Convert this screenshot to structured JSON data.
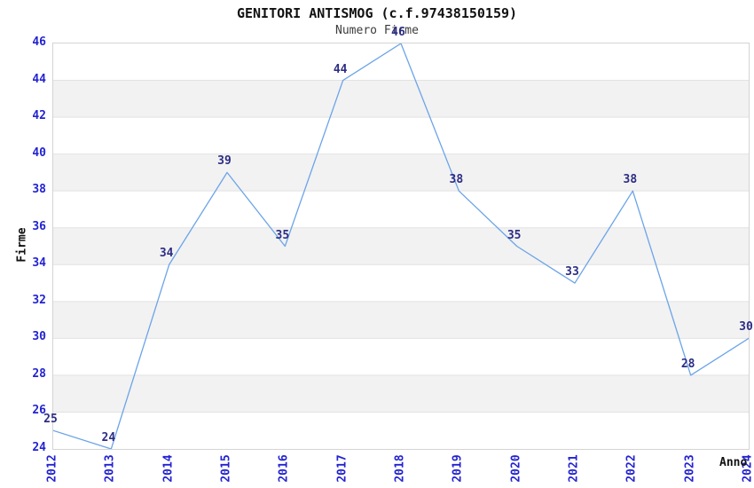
{
  "chart_data": {
    "type": "line",
    "title": "GENITORI ANTISMOG (c.f.97438150159)",
    "subtitle": "Numero Firme",
    "xlabel": "Anno",
    "ylabel": "Firme",
    "x": [
      "2012",
      "2013",
      "2014",
      "2015",
      "2016",
      "2017",
      "2018",
      "2019",
      "2020",
      "2021",
      "2022",
      "2023",
      "2024"
    ],
    "series": [
      {
        "name": "Numero Firme",
        "values": [
          25,
          24,
          34,
          39,
          35,
          44,
          46,
          38,
          35,
          33,
          38,
          28,
          30
        ]
      }
    ],
    "ylim": [
      24,
      46
    ],
    "ytick_step": 2,
    "grid": true,
    "legend": false,
    "point_labels": true,
    "colors": {
      "line": "#6BA4E8",
      "tick_label": "#2323d1",
      "data_label": "#2d2d85",
      "band_gray": "#f2f2f2",
      "band_white": "#ffffff",
      "gridline": "#e2e2e2",
      "plot_border": "#d4d4d4"
    }
  }
}
